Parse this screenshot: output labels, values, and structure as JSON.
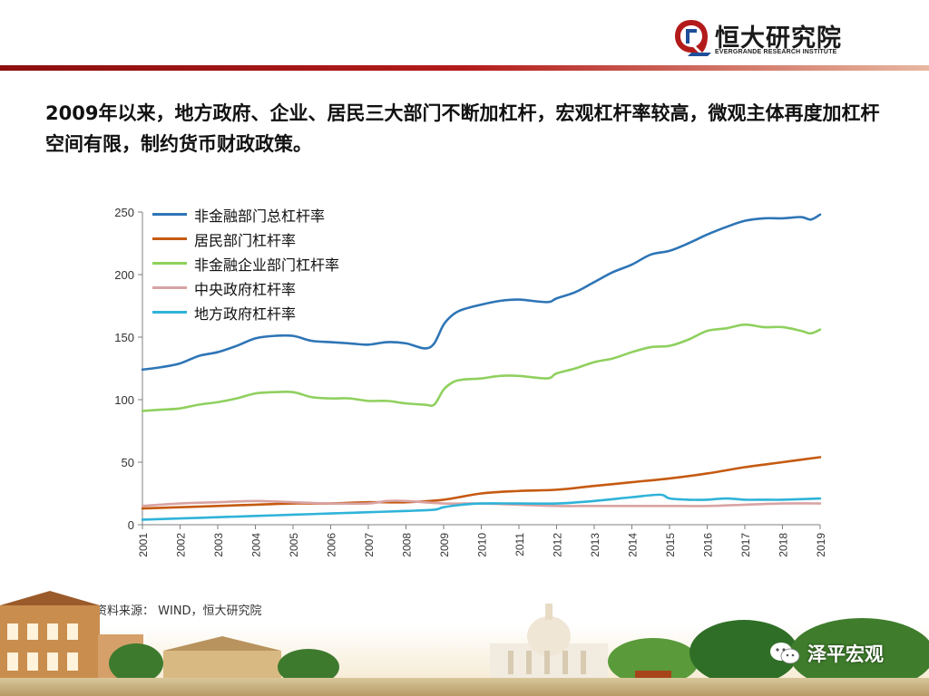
{
  "header": {
    "logo_cn": "恒大研究院",
    "logo_en": "EVERGRANDE RESEARCH INSTITUTE"
  },
  "headline": "2009年以来，地方政府、企业、居民三大部门不断加杠杆，宏观杠杆率较高，微观主体再度加杠杆空间有限，制约货币财政政策。",
  "source": "资料来源： WIND，恒大研究院",
  "watermark": "泽平宏观",
  "colors": {
    "brand_red": "#b31b1b",
    "total": "#2e75b6",
    "household": "#c55a11",
    "corporate": "#8fd05e",
    "central": "#d9a3a3",
    "local": "#2fb3d9"
  },
  "chart_data": {
    "type": "line",
    "x_ticks": [
      "2001",
      "2002",
      "2003",
      "2004",
      "2005",
      "2006",
      "2007",
      "2008",
      "2009",
      "2010",
      "2011",
      "2012",
      "2013",
      "2014",
      "2015",
      "2016",
      "2017",
      "2018",
      "2019"
    ],
    "xlim": [
      2001,
      2019
    ],
    "ylim": [
      0,
      250
    ],
    "y_ticks": [
      0,
      50,
      100,
      150,
      200,
      250
    ],
    "legend_position": "top-left",
    "grid": false,
    "series": [
      {
        "name": "非金融部门总杠杆率",
        "color": "#2e75b6",
        "points": [
          [
            2001,
            124
          ],
          [
            2001.5,
            126
          ],
          [
            2002,
            129
          ],
          [
            2002.5,
            135
          ],
          [
            2003,
            138
          ],
          [
            2003.5,
            143
          ],
          [
            2004,
            149
          ],
          [
            2004.5,
            151
          ],
          [
            2005,
            151
          ],
          [
            2005.5,
            147
          ],
          [
            2006,
            146
          ],
          [
            2006.5,
            145
          ],
          [
            2007,
            144
          ],
          [
            2007.5,
            146
          ],
          [
            2008,
            145
          ],
          [
            2008.5,
            141
          ],
          [
            2008.75,
            145
          ],
          [
            2009,
            160
          ],
          [
            2009.25,
            168
          ],
          [
            2009.5,
            172
          ],
          [
            2010,
            176
          ],
          [
            2010.5,
            179
          ],
          [
            2011,
            180
          ],
          [
            2011.75,
            178
          ],
          [
            2012,
            181
          ],
          [
            2012.5,
            186
          ],
          [
            2013,
            194
          ],
          [
            2013.5,
            202
          ],
          [
            2014,
            208
          ],
          [
            2014.5,
            216
          ],
          [
            2015,
            219
          ],
          [
            2015.5,
            225
          ],
          [
            2016,
            232
          ],
          [
            2016.5,
            238
          ],
          [
            2017,
            243
          ],
          [
            2017.5,
            245
          ],
          [
            2018,
            245
          ],
          [
            2018.5,
            246
          ],
          [
            2018.75,
            244
          ],
          [
            2019,
            248
          ]
        ]
      },
      {
        "name": "居民部门杠杆率",
        "color": "#c55a11",
        "points": [
          [
            2001,
            13
          ],
          [
            2002,
            14
          ],
          [
            2003,
            15
          ],
          [
            2004,
            16
          ],
          [
            2005,
            17
          ],
          [
            2006,
            17
          ],
          [
            2007,
            18
          ],
          [
            2008,
            18
          ],
          [
            2009,
            20
          ],
          [
            2010,
            25
          ],
          [
            2011,
            27
          ],
          [
            2012,
            28
          ],
          [
            2013,
            31
          ],
          [
            2014,
            34
          ],
          [
            2015,
            37
          ],
          [
            2016,
            41
          ],
          [
            2017,
            46
          ],
          [
            2018,
            50
          ],
          [
            2019,
            54
          ]
        ]
      },
      {
        "name": "非金融企业部门杠杆率",
        "color": "#8fd05e",
        "points": [
          [
            2001,
            91
          ],
          [
            2001.5,
            92
          ],
          [
            2002,
            93
          ],
          [
            2002.5,
            96
          ],
          [
            2003,
            98
          ],
          [
            2003.5,
            101
          ],
          [
            2004,
            105
          ],
          [
            2004.5,
            106
          ],
          [
            2005,
            106
          ],
          [
            2005.5,
            102
          ],
          [
            2006,
            101
          ],
          [
            2006.5,
            101
          ],
          [
            2007,
            99
          ],
          [
            2007.5,
            99
          ],
          [
            2008,
            97
          ],
          [
            2008.5,
            96
          ],
          [
            2008.75,
            96
          ],
          [
            2009,
            108
          ],
          [
            2009.25,
            114
          ],
          [
            2009.5,
            116
          ],
          [
            2010,
            117
          ],
          [
            2010.5,
            119
          ],
          [
            2011,
            119
          ],
          [
            2011.75,
            117
          ],
          [
            2012,
            121
          ],
          [
            2012.5,
            125
          ],
          [
            2013,
            130
          ],
          [
            2013.5,
            133
          ],
          [
            2014,
            138
          ],
          [
            2014.5,
            142
          ],
          [
            2015,
            143
          ],
          [
            2015.5,
            148
          ],
          [
            2016,
            155
          ],
          [
            2016.5,
            157
          ],
          [
            2017,
            160
          ],
          [
            2017.5,
            158
          ],
          [
            2018,
            158
          ],
          [
            2018.5,
            155
          ],
          [
            2018.75,
            153
          ],
          [
            2019,
            156
          ]
        ]
      },
      {
        "name": "中央政府杠杆率",
        "color": "#d9a3a3",
        "points": [
          [
            2001,
            15
          ],
          [
            2002,
            17
          ],
          [
            2003,
            18
          ],
          [
            2004,
            19
          ],
          [
            2005,
            18
          ],
          [
            2006,
            17
          ],
          [
            2007,
            17
          ],
          [
            2007.5,
            19
          ],
          [
            2008,
            19
          ],
          [
            2009,
            17
          ],
          [
            2010,
            17
          ],
          [
            2011,
            16
          ],
          [
            2012,
            15
          ],
          [
            2013,
            15
          ],
          [
            2014,
            15
          ],
          [
            2015,
            15
          ],
          [
            2016,
            15
          ],
          [
            2017,
            16
          ],
          [
            2018,
            17
          ],
          [
            2019,
            17
          ]
        ]
      },
      {
        "name": "地方政府杠杆率",
        "color": "#2fb3d9",
        "points": [
          [
            2001,
            4
          ],
          [
            2002,
            5
          ],
          [
            2003,
            6
          ],
          [
            2004,
            7
          ],
          [
            2005,
            8
          ],
          [
            2006,
            9
          ],
          [
            2007,
            10
          ],
          [
            2008,
            11
          ],
          [
            2008.75,
            12
          ],
          [
            2009,
            14
          ],
          [
            2009.5,
            16
          ],
          [
            2010,
            17
          ],
          [
            2011,
            17
          ],
          [
            2012,
            17
          ],
          [
            2013,
            19
          ],
          [
            2014,
            22
          ],
          [
            2014.75,
            24
          ],
          [
            2015,
            21
          ],
          [
            2015.5,
            20
          ],
          [
            2016,
            20
          ],
          [
            2016.5,
            21
          ],
          [
            2017,
            20
          ],
          [
            2017.5,
            20
          ],
          [
            2018,
            20
          ],
          [
            2019,
            21
          ]
        ]
      }
    ]
  }
}
